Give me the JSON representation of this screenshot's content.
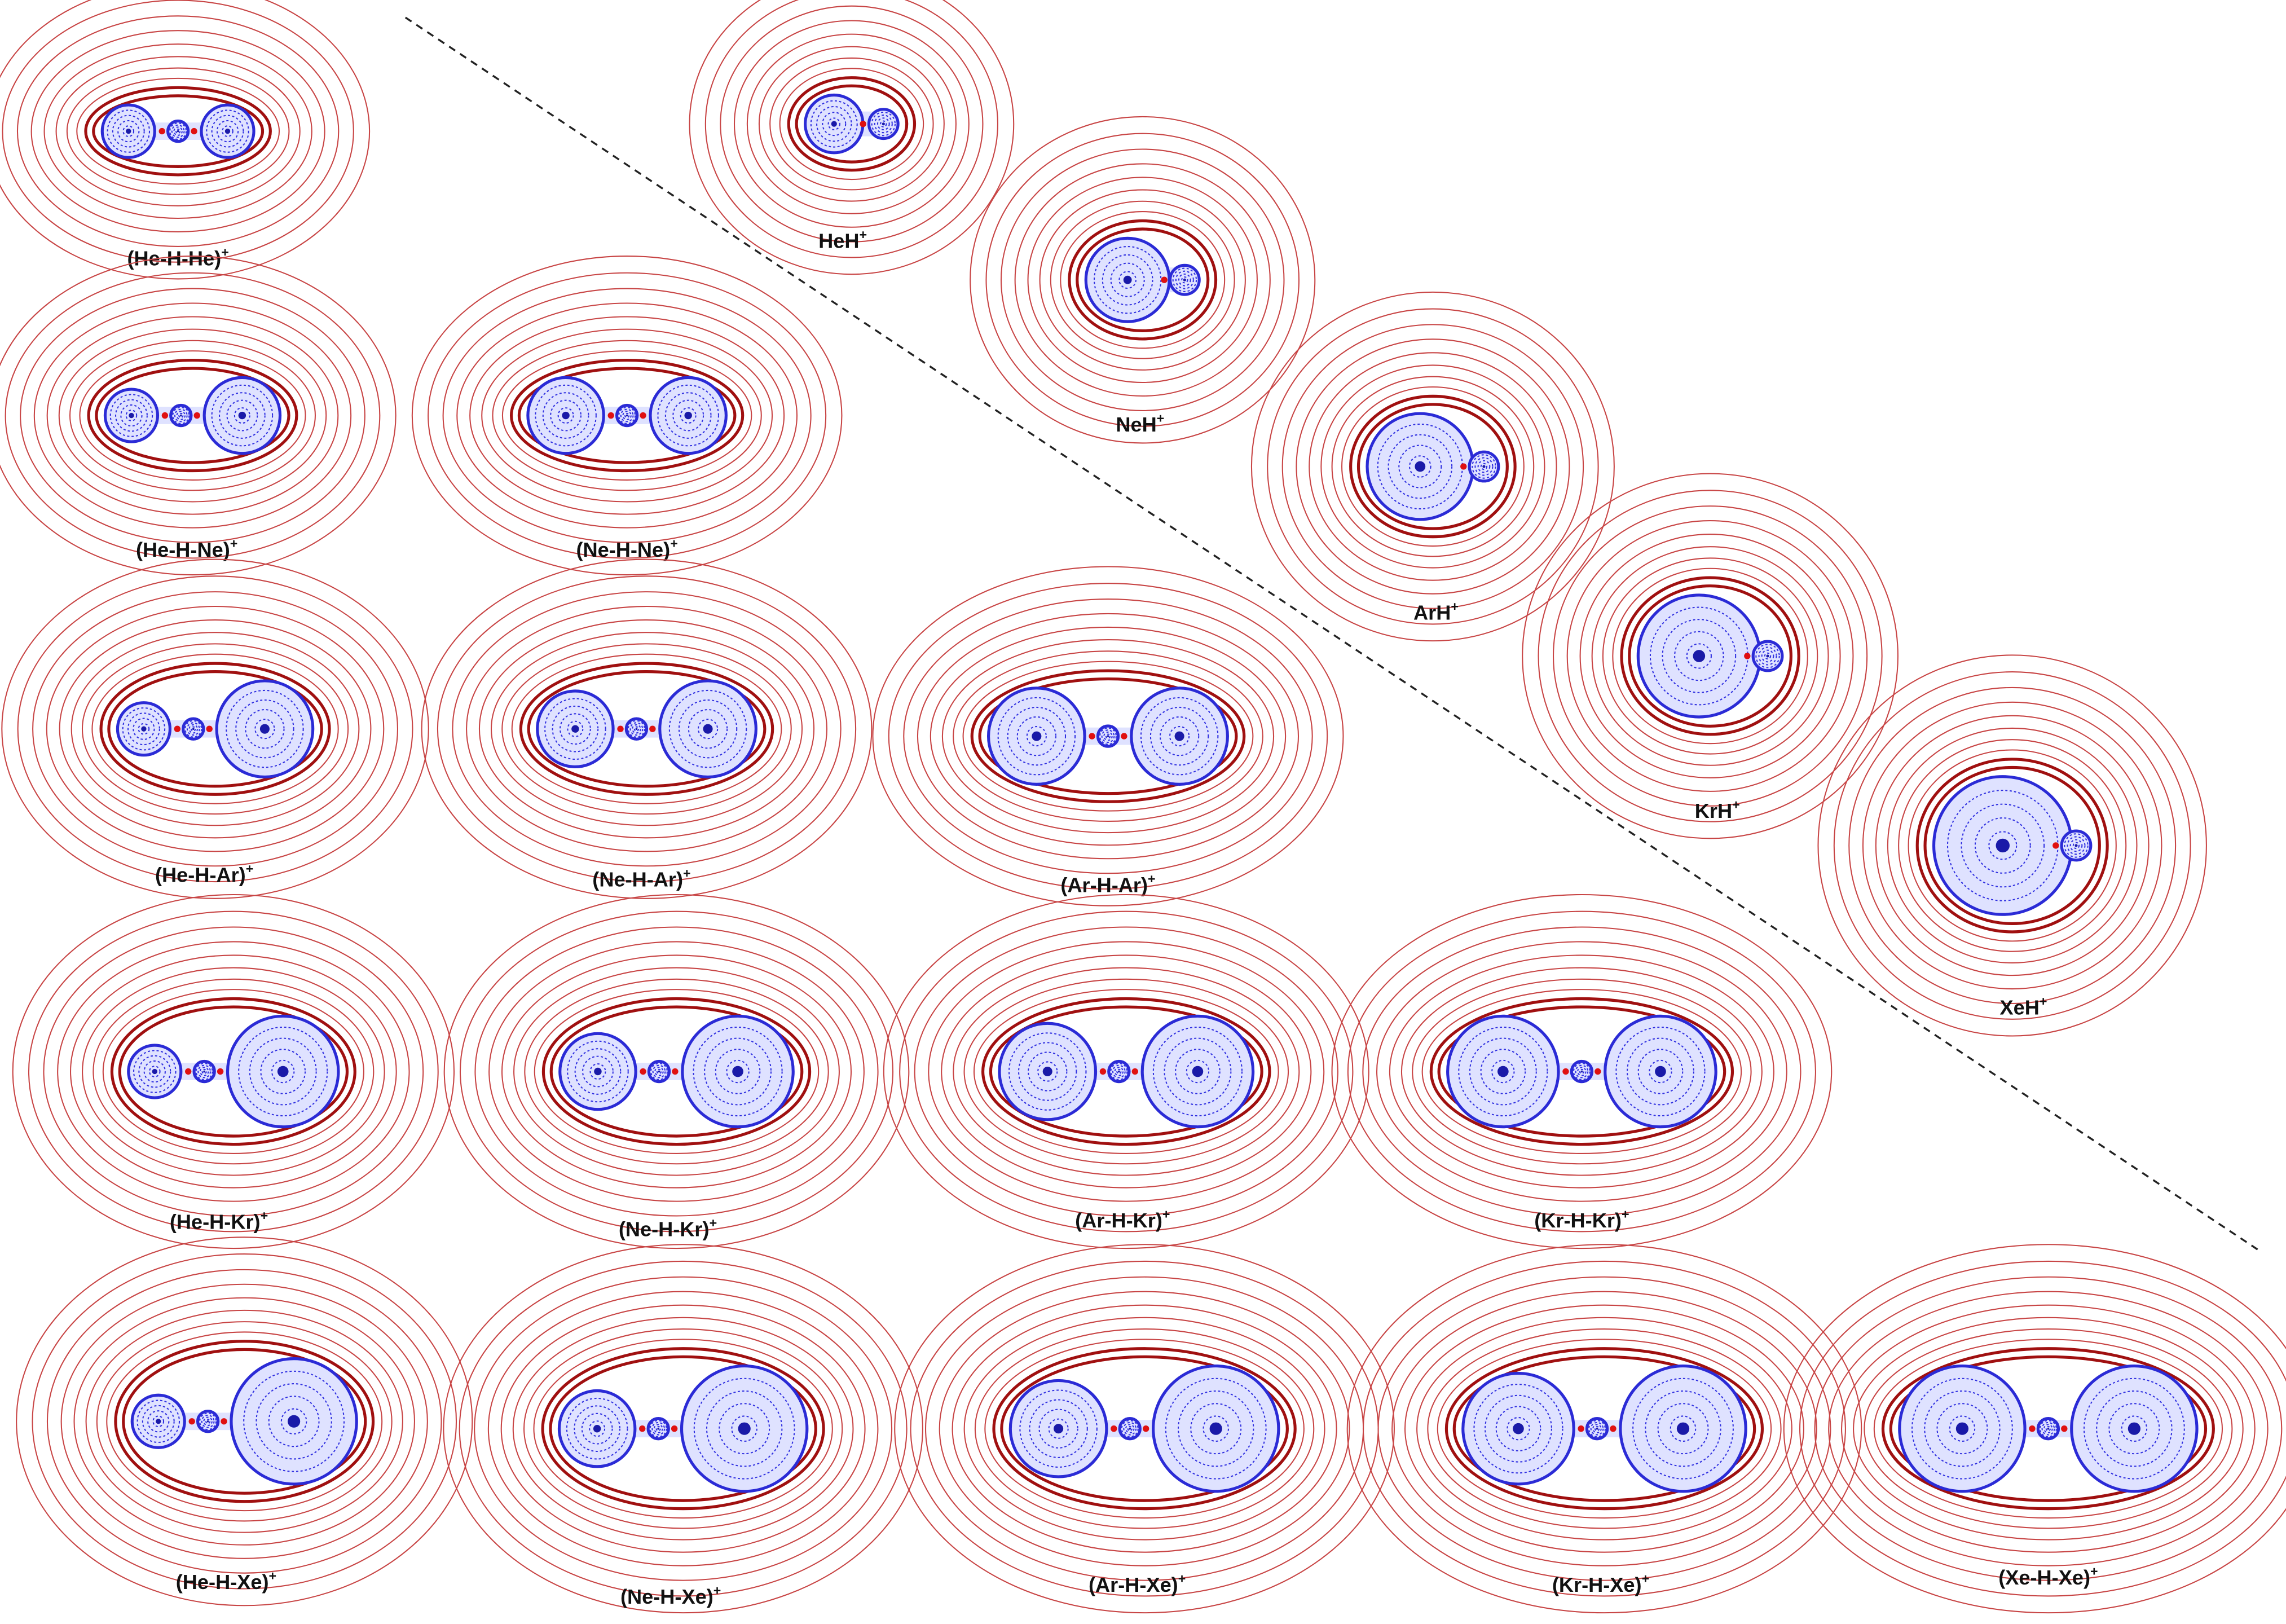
{
  "triatomic": [
    {
      "name": "(He-H-He)",
      "charge": "+"
    },
    {
      "name": "(He-H-Ne)",
      "charge": "+"
    },
    {
      "name": "(Ne-H-Ne)",
      "charge": "+"
    },
    {
      "name": "(He-H-Ar)",
      "charge": "+"
    },
    {
      "name": "(Ne-H-Ar)",
      "charge": "+"
    },
    {
      "name": "(Ar-H-Ar)",
      "charge": "+"
    },
    {
      "name": "(He-H-Kr)",
      "charge": "+"
    },
    {
      "name": "(Ne-H-Kr)",
      "charge": "+"
    },
    {
      "name": "(Ar-H-Kr)",
      "charge": "+"
    },
    {
      "name": "(Kr-H-Kr)",
      "charge": "+"
    },
    {
      "name": "(He-H-Xe)",
      "charge": "+"
    },
    {
      "name": "(Ne-H-Xe)",
      "charge": "+"
    },
    {
      "name": "(Ar-H-Xe)",
      "charge": "+"
    },
    {
      "name": "(Kr-H-Xe)",
      "charge": "+"
    },
    {
      "name": "(Xe-H-Xe)",
      "charge": "+"
    }
  ],
  "diatomic": [
    {
      "name": "HeH",
      "charge": "+"
    },
    {
      "name": "NeH",
      "charge": "+"
    },
    {
      "name": "ArH",
      "charge": "+"
    },
    {
      "name": "KrH",
      "charge": "+"
    },
    {
      "name": "XeH",
      "charge": "+"
    }
  ]
}
